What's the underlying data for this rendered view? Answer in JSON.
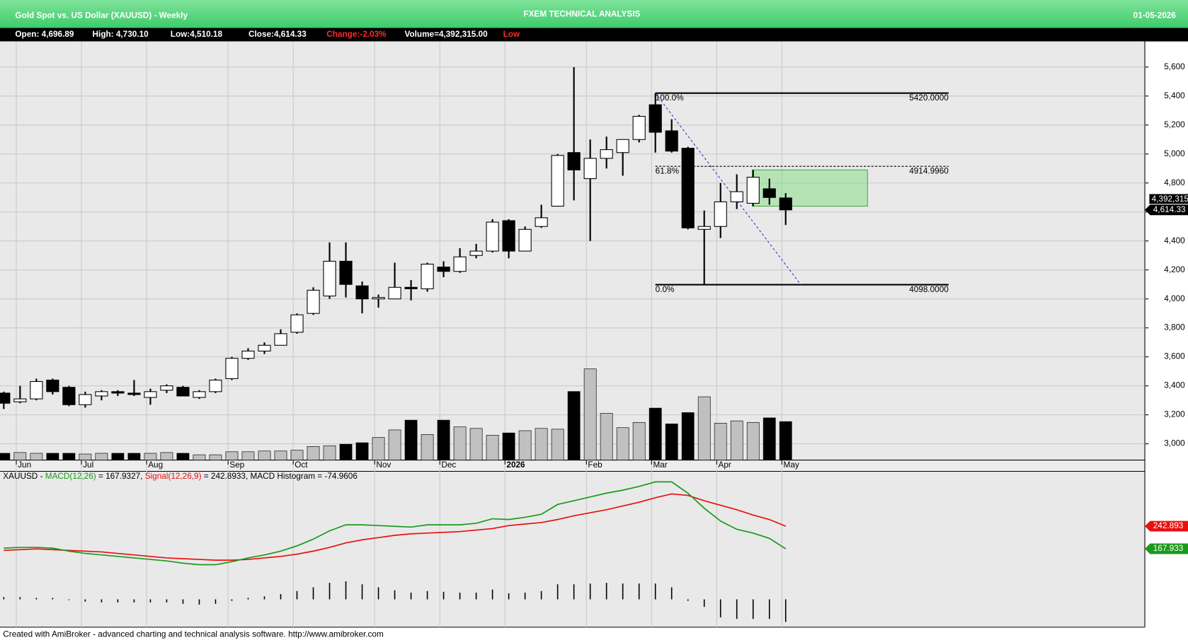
{
  "header": {
    "title": "Gold Spot vs. US Dollar (XAUUSD) - Weekly",
    "center": "FXEM TECHNICAL ANALYSIS",
    "date": "01-05-2026",
    "stats": [
      {
        "text": "Open: 4,696.89",
        "color": "#ffffff"
      },
      {
        "text": "High: 4,730.10",
        "color": "#ffffff"
      },
      {
        "text": "Low:4,510.18",
        "color": "#ffffff"
      },
      {
        "text": "Close:4,614.33",
        "color": "#ffffff"
      },
      {
        "text": "Change:-2.03%",
        "color": "#ff2a2a"
      },
      {
        "text": "Volume=4,392,315.00",
        "color": "#ffffff"
      },
      {
        "text": "Low",
        "color": "#ff2a2a"
      }
    ]
  },
  "chart_data": [
    {
      "type": "candlestick",
      "categories": [
        null,
        "Jun",
        null,
        null,
        null,
        "Jul",
        null,
        null,
        null,
        "Aug",
        null,
        null,
        null,
        null,
        "Sep",
        null,
        null,
        null,
        "Oct",
        null,
        null,
        null,
        null,
        "Nov",
        null,
        null,
        null,
        "Dec",
        null,
        null,
        null,
        "2026",
        null,
        null,
        null,
        null,
        "Feb",
        null,
        null,
        null,
        "Mar",
        null,
        null,
        null,
        "Apr",
        null,
        null,
        null,
        "May"
      ],
      "open": [
        3350,
        3290,
        3310,
        3440,
        3390,
        3270,
        3330,
        3360,
        3350,
        3320,
        3370,
        3390,
        3320,
        3360,
        3450,
        3590,
        3640,
        3680,
        3770,
        3900,
        4020,
        4260,
        4090,
        4000,
        4000,
        4080,
        4070,
        4220,
        4190,
        4300,
        4330,
        4540,
        4330,
        4500,
        4640,
        5010,
        4830,
        4970,
        5010,
        5100,
        5340,
        5160,
        5040,
        4480,
        4500,
        4670,
        4660,
        4760,
        4696.89
      ],
      "high": [
        3360,
        3400,
        3450,
        3450,
        3400,
        3360,
        3370,
        3370,
        3440,
        3380,
        3410,
        3400,
        3370,
        3450,
        3600,
        3660,
        3700,
        3790,
        3900,
        4080,
        4390,
        4390,
        4120,
        4030,
        4250,
        4130,
        4250,
        4260,
        4350,
        4380,
        4550,
        4550,
        4500,
        4650,
        5000,
        5600,
        5100,
        5120,
        5100,
        5270,
        5420,
        5240,
        5050,
        4610,
        4800,
        4860,
        4890,
        4830,
        4730.1
      ],
      "low": [
        3240,
        3280,
        3300,
        3340,
        3260,
        3250,
        3300,
        3330,
        3330,
        3270,
        3350,
        3330,
        3310,
        3350,
        3440,
        3580,
        3620,
        3680,
        3760,
        3890,
        4000,
        4010,
        3900,
        3940,
        4000,
        3990,
        4050,
        4150,
        4180,
        4280,
        4320,
        4280,
        4330,
        4490,
        4640,
        4680,
        4400,
        4900,
        4850,
        5080,
        5010,
        5010,
        4480,
        4098,
        4420,
        4620,
        4640,
        4650,
        4510.18
      ],
      "close": [
        3280,
        3310,
        3430,
        3360,
        3270,
        3340,
        3360,
        3350,
        3340,
        3360,
        3400,
        3330,
        3360,
        3440,
        3590,
        3640,
        3680,
        3760,
        3890,
        4060,
        4260,
        4100,
        4000,
        4010,
        4080,
        4070,
        4240,
        4190,
        4290,
        4330,
        4530,
        4330,
        4480,
        4560,
        4990,
        4890,
        4970,
        5030,
        5100,
        5260,
        5150,
        5020,
        4490,
        4500,
        4670,
        4740,
        4840,
        4700,
        4614.33
      ],
      "volume": [
        774000,
        860000,
        774000,
        774000,
        774000,
        688000,
        774000,
        774000,
        774000,
        774000,
        860000,
        774000,
        602000,
        602000,
        946000,
        946000,
        1032000,
        1032000,
        1118000,
        1548000,
        1634000,
        1806000,
        1978000,
        2580000,
        3440000,
        4558000,
        2924000,
        4558000,
        3784000,
        3612000,
        2838000,
        3096000,
        3354000,
        3612000,
        3526000,
        7826000,
        10406000,
        5332000,
        3698000,
        4300000,
        5934000,
        4128000,
        5418000,
        7224000,
        4214000,
        4472000,
        4300000,
        4816000,
        4392315
      ],
      "volume_ylim": [
        0,
        47800000
      ],
      "ylim": [
        2888,
        5777
      ],
      "yticks": [
        {
          "value": 3000,
          "label": "3,000"
        },
        {
          "value": 3200,
          "label": "3,200"
        },
        {
          "value": 3400,
          "label": "3,400"
        },
        {
          "value": 3600,
          "label": "3,600"
        },
        {
          "value": 3800,
          "label": "3,800"
        },
        {
          "value": 4000,
          "label": "4,000"
        },
        {
          "value": 4200,
          "label": "4,200"
        },
        {
          "value": 4400,
          "label": "4,400"
        },
        {
          "value": 4600,
          "label": "4,600"
        },
        {
          "value": 4800,
          "label": "4,800"
        },
        {
          "value": 5000,
          "label": "5,000"
        },
        {
          "value": 5200,
          "label": "5,200"
        },
        {
          "value": 5400,
          "label": "5,400"
        },
        {
          "value": 5600,
          "label": "5,600"
        }
      ],
      "grid": true,
      "fibonacci": [
        {
          "value": 5420,
          "pct": "100.0%",
          "label": "5420.0000"
        },
        {
          "value": 4914.996,
          "pct": "61.8%",
          "label": "4914.9960"
        },
        {
          "value": 4098,
          "pct": "0.0%",
          "label": "4098.0000"
        }
      ],
      "zone": [
        4640,
        4890
      ],
      "last_labels": [
        {
          "text": "4,392,315"
        },
        {
          "text": "4,614.33",
          "value": 4614.33
        }
      ]
    },
    {
      "type": "macd",
      "legend_prefix": "XAUUSD - ",
      "legend_values": [
        " = 167.9327, ",
        " = 242.8933, ",
        " = -74.9606"
      ],
      "ylim": [
        -92.5,
        425
      ],
      "series": [
        {
          "name": "MACD(12,26)",
          "color": "#1a9a1a",
          "values": [
            170,
            172.5,
            172.5,
            170,
            160,
            152.5,
            147.5,
            142.5,
            137.5,
            132.5,
            127.5,
            120,
            115,
            115,
            125,
            137.5,
            147.5,
            160,
            177.5,
            200,
            227.5,
            247.5,
            247.5,
            245,
            242.5,
            240,
            247.5,
            247.5,
            247.5,
            252.5,
            267.5,
            265,
            272.5,
            282.5,
            315,
            327.5,
            340,
            352.5,
            362.5,
            375,
            390,
            390,
            352.5,
            302.5,
            260,
            232.5,
            220,
            202.5,
            167.9327
          ]
        },
        {
          "name": "Signal(12,26,9)",
          "color": "#e81010",
          "values": [
            162.5,
            165,
            167.5,
            165,
            162.5,
            160,
            157.5,
            152.5,
            147.5,
            142.5,
            137.5,
            135,
            132.5,
            130,
            130,
            132.5,
            137.5,
            142.5,
            150,
            160,
            172.5,
            187.5,
            197.5,
            205,
            212.5,
            217.5,
            220,
            222.5,
            225,
            230,
            235,
            245,
            250,
            255,
            265,
            277.5,
            287.5,
            297.5,
            310,
            322.5,
            337.5,
            350,
            345,
            327.5,
            312.5,
            297.5,
            280,
            265,
            242.8933
          ]
        },
        {
          "name": "MACD Histogram",
          "color": "#000000",
          "values": [
            7.5,
            7.5,
            5,
            5,
            -2.5,
            -7.5,
            -10,
            -10,
            -10,
            -10,
            -10,
            -15,
            -17.5,
            -15,
            -5,
            5,
            10,
            17.5,
            27.5,
            40,
            55,
            60,
            50,
            40,
            30,
            22.5,
            27.5,
            25,
            22.5,
            22.5,
            32.5,
            20,
            22.5,
            27.5,
            50,
            50,
            52.5,
            55,
            52.5,
            52.5,
            52.5,
            40,
            -5,
            -25,
            -60,
            -65,
            -65,
            -65,
            -74.9606
          ]
        }
      ],
      "last_labels": [
        "242.893",
        "167.933"
      ]
    }
  ],
  "footer": "Created with AmiBroker - advanced charting and technical analysis software. http://www.amibroker.com"
}
